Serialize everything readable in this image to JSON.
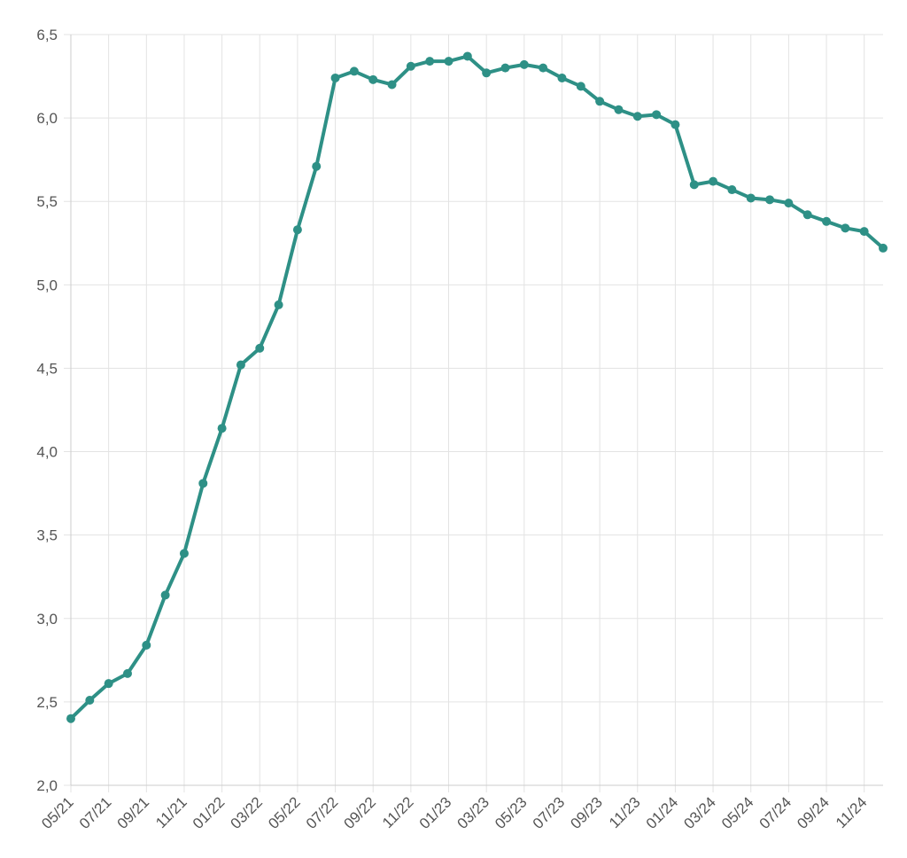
{
  "chart_data": {
    "type": "line",
    "title": "",
    "xlabel": "",
    "ylabel": "",
    "ylim": [
      2.0,
      6.5
    ],
    "y_ticks": [
      "2,0",
      "2,5",
      "3,0",
      "3,5",
      "4,0",
      "4,5",
      "5,0",
      "5,5",
      "6,0",
      "6,5"
    ],
    "x_tick_labels": [
      "05/21",
      "07/21",
      "09/21",
      "11/21",
      "01/22",
      "03/22",
      "05/22",
      "07/22",
      "09/22",
      "11/22",
      "01/23",
      "03/23",
      "05/23",
      "07/23",
      "09/23",
      "11/23",
      "01/24",
      "03/24",
      "05/24",
      "07/24",
      "09/24",
      "11/24"
    ],
    "grid": true,
    "legend": "none",
    "line_color": "#2e9086",
    "x": [
      "05/21",
      "06/21",
      "07/21",
      "08/21",
      "09/21",
      "10/21",
      "11/21",
      "12/21",
      "01/22",
      "02/22",
      "03/22",
      "04/22",
      "05/22",
      "06/22",
      "07/22",
      "08/22",
      "09/22",
      "10/22",
      "11/22",
      "12/22",
      "01/23",
      "02/23",
      "03/23",
      "04/23",
      "05/23",
      "06/23",
      "07/23",
      "08/23",
      "09/23",
      "10/23",
      "11/23",
      "12/23",
      "01/24",
      "02/24",
      "03/24",
      "04/24",
      "05/24",
      "06/24",
      "07/24",
      "08/24",
      "09/24",
      "10/24",
      "11/24",
      "12/24"
    ],
    "values": [
      2.4,
      2.51,
      2.61,
      2.67,
      2.84,
      3.14,
      3.39,
      3.81,
      4.14,
      4.52,
      4.62,
      4.88,
      5.33,
      5.71,
      6.24,
      6.28,
      6.23,
      6.2,
      6.31,
      6.34,
      6.34,
      6.37,
      6.27,
      6.3,
      6.32,
      6.3,
      6.24,
      6.19,
      6.1,
      6.05,
      6.01,
      6.02,
      5.96,
      5.6,
      5.62,
      5.57,
      5.52,
      5.51,
      5.49,
      5.42,
      5.38,
      5.34,
      5.32,
      5.22
    ]
  }
}
